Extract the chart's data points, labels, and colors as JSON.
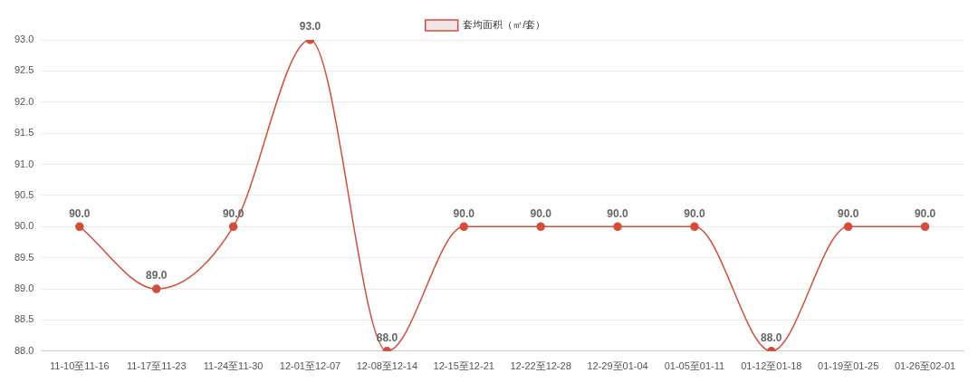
{
  "chart_data": {
    "type": "line",
    "categories": [
      "11-10至11-16",
      "11-17至11-23",
      "11-24至11-30",
      "12-01至12-07",
      "12-08至12-14",
      "12-15至12-21",
      "12-22至12-28",
      "12-29至01-04",
      "01-05至01-11",
      "01-12至01-18",
      "01-19至01-25",
      "01-26至02-01"
    ],
    "series": [
      {
        "name": "套均面积（㎡/套）",
        "color": "#d44c3c",
        "values": [
          90,
          89,
          90,
          93,
          88,
          90,
          90,
          90,
          90,
          88,
          90,
          90
        ],
        "value_labels": [
          "90.0",
          "89.0",
          "90.0",
          "93.0",
          "88.0",
          "90.0",
          "90.0",
          "90.0",
          "90.0",
          "88.0",
          "90.0",
          "90.0"
        ]
      }
    ],
    "ylim": [
      88,
      93
    ],
    "yticks": [
      {
        "value": 88,
        "label": "88.0"
      },
      {
        "value": 88.5,
        "label": "88.5"
      },
      {
        "value": 89,
        "label": "89.0"
      },
      {
        "value": 89.5,
        "label": "89.5"
      },
      {
        "value": 90,
        "label": "90.0"
      },
      {
        "value": 90.5,
        "label": "90.5"
      },
      {
        "value": 91,
        "label": "91.0"
      },
      {
        "value": 91.5,
        "label": "91.5"
      },
      {
        "value": 92,
        "label": "92.0"
      },
      {
        "value": 92.5,
        "label": "92.5"
      },
      {
        "value": 93,
        "label": "93.0"
      }
    ],
    "grid": "y",
    "legend": "top",
    "marker": "circle",
    "line_style": "solid"
  }
}
